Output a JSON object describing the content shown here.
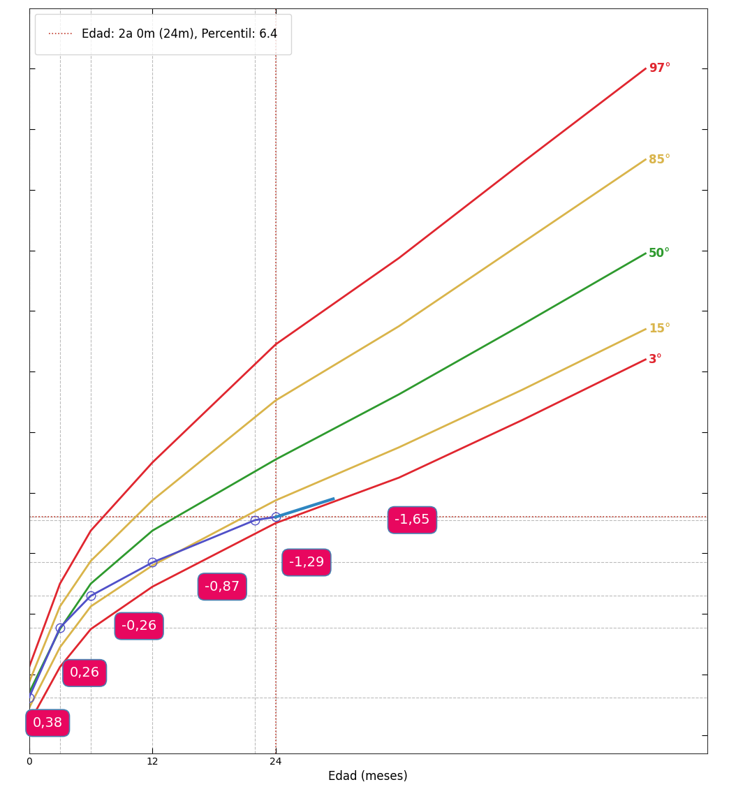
{
  "chart_data": {
    "type": "line",
    "x_label": "Edad (meses)",
    "xlim": [
      0,
      66
    ],
    "xticks": [
      0,
      12,
      24
    ],
    "ylim": [
      1.4,
      26
    ],
    "yticks": [
      2,
      4,
      6,
      8,
      10,
      12,
      14,
      16,
      18,
      20,
      22,
      24
    ],
    "tick_labels": "x",
    "grid": false,
    "legend": "upper left",
    "x": [
      0,
      3,
      6,
      12,
      24,
      36,
      48,
      60
    ],
    "series": [
      {
        "name": "97°",
        "color": "#e0262f",
        "values": [
          4.25,
          7.0,
          8.75,
          11.0,
          14.9,
          17.75,
          20.9,
          24.0
        ]
      },
      {
        "name": "85°",
        "color": "#d9b44a",
        "values": [
          3.75,
          6.25,
          7.75,
          9.75,
          13.05,
          15.5,
          18.25,
          21.0
        ]
      },
      {
        "name": "50°",
        "color": "#2e9a2e",
        "values": [
          3.4,
          5.5,
          7.0,
          8.75,
          11.1,
          13.25,
          15.55,
          17.9
        ]
      },
      {
        "name": "15°",
        "color": "#d9b44a",
        "values": [
          2.9,
          4.9,
          6.25,
          7.6,
          9.75,
          11.5,
          13.4,
          15.4
        ]
      },
      {
        "name": "3°",
        "color": "#e0262f",
        "values": [
          2.4,
          4.25,
          5.5,
          6.9,
          9.0,
          10.5,
          12.4,
          14.4
        ]
      }
    ],
    "patient": {
      "x": [
        0,
        3,
        6,
        12,
        22,
        24
      ],
      "values": [
        3.25,
        5.55,
        6.6,
        7.7,
        9.1,
        9.2
      ],
      "color": "#5050c8",
      "marker": "o"
    },
    "trend": {
      "x": [
        24,
        29.6
      ],
      "values": [
        9.2,
        9.8
      ],
      "color": "#2e86c1"
    },
    "crosshair": {
      "name": "Edad: 2a 0m (24m), Percentil: 6.4",
      "x": 24,
      "y": 9.2,
      "color": "#c0392b",
      "line_style": "dotted"
    },
    "annotations": [
      {
        "text": "0,38",
        "x": 1.8,
        "y": 2.4
      },
      {
        "text": "0,26",
        "x": 5.4,
        "y": 4.05
      },
      {
        "text": "-0,26",
        "x": 10.7,
        "y": 5.6
      },
      {
        "text": "-0,87",
        "x": 18.8,
        "y": 6.9
      },
      {
        "text": "-1,29",
        "x": 27.0,
        "y": 7.7
      },
      {
        "text": "-1,65",
        "x": 37.3,
        "y": 9.1
      }
    ],
    "annotation_color": "#e8075f"
  }
}
